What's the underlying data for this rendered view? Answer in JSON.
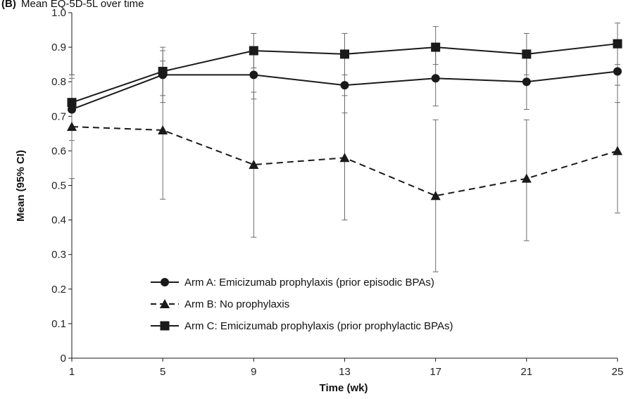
{
  "header": {
    "panel_label": "(B)",
    "title_fragment": "Mean EQ-5D-5L over time"
  },
  "chart_data": {
    "type": "line",
    "xlabel": "Time (wk)",
    "ylabel": "Mean (95% CI)",
    "x": [
      1,
      5,
      9,
      13,
      17,
      21,
      25
    ],
    "xlim": [
      1,
      25
    ],
    "ylim": [
      0,
      1.0
    ],
    "yticks": [
      "0",
      "0.1",
      "0.2",
      "0.3",
      "0.4",
      "0.5",
      "0.6",
      "0.7",
      "0.8",
      "0.9",
      "1.0"
    ],
    "grid": false,
    "legend_position": "bottom-left",
    "series": [
      {
        "name": "Arm A: Emicizumab prophylaxis (prior episodic BPAs)",
        "marker": "circle",
        "dash": "solid",
        "values": [
          0.72,
          0.82,
          0.82,
          0.79,
          0.81,
          0.8,
          0.83
        ],
        "ci_low": [
          0.63,
          0.74,
          0.75,
          0.71,
          0.73,
          0.72,
          0.74
        ],
        "ci_high": [
          0.81,
          0.89,
          0.89,
          0.87,
          0.89,
          0.88,
          0.92
        ]
      },
      {
        "name": "Arm B: No prophylaxis",
        "marker": "triangle",
        "dash": "dashed",
        "values": [
          0.67,
          0.66,
          0.56,
          0.58,
          0.47,
          0.52,
          0.6
        ],
        "ci_low": [
          0.52,
          0.46,
          0.35,
          0.4,
          0.25,
          0.34,
          0.42
        ],
        "ci_high": [
          0.82,
          0.86,
          0.77,
          0.76,
          0.69,
          0.69,
          0.79
        ]
      },
      {
        "name": "Arm C: Emicizumab prophylaxis (prior prophylactic BPAs)",
        "marker": "square",
        "dash": "solid",
        "values": [
          0.74,
          0.83,
          0.89,
          0.88,
          0.9,
          0.88,
          0.91
        ],
        "ci_low": [
          0.66,
          0.76,
          0.84,
          0.82,
          0.85,
          0.82,
          0.85
        ],
        "ci_high": [
          0.82,
          0.9,
          0.94,
          0.94,
          0.96,
          0.94,
          0.97
        ]
      }
    ],
    "colors": {
      "line": "#1a1a1a",
      "errorbar": "#6b6b6b",
      "axis": "#1a1a1a"
    }
  }
}
